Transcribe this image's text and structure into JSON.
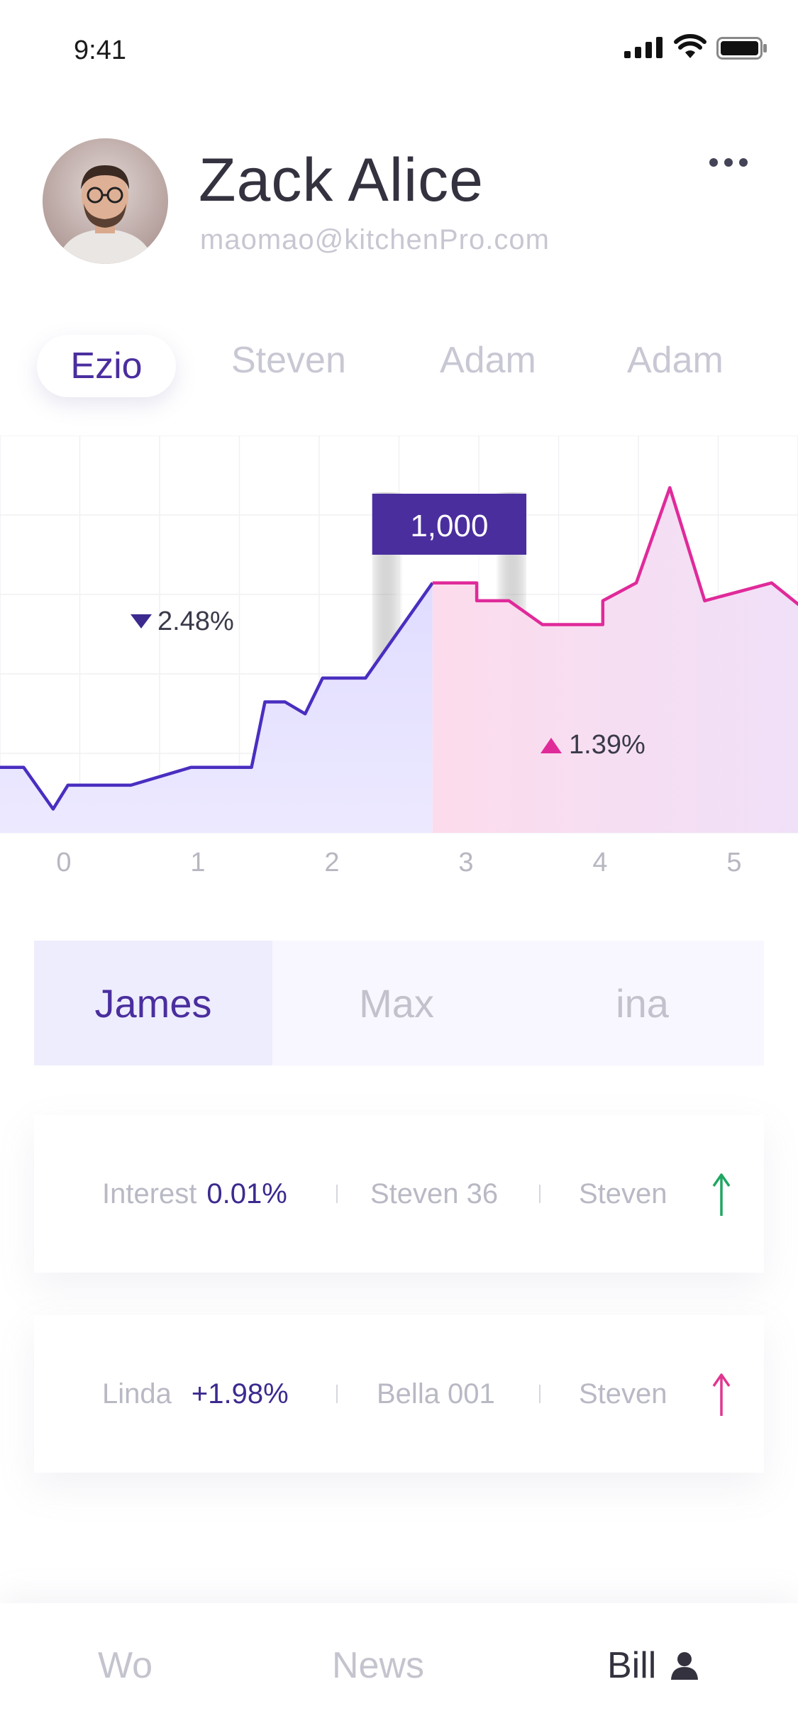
{
  "status_bar": {
    "time": "9:41"
  },
  "profile": {
    "name": "Zack Alice",
    "email": "maomao@kitchenPro.com"
  },
  "top_tabs": [
    "Ezio",
    "Steven",
    "Adam",
    "Adam"
  ],
  "chart_data": {
    "type": "area",
    "x_ticks": [
      "0",
      "1",
      "2",
      "3",
      "4",
      "5"
    ],
    "tooltip": "1,000",
    "annotations": [
      {
        "text": "2.48%",
        "direction": "down"
      },
      {
        "text": "1.39%",
        "direction": "up"
      }
    ],
    "series": [
      {
        "color": "#4a2ec0",
        "points": [
          [
            -0.48,
            11
          ],
          [
            -0.3,
            11
          ],
          [
            -0.08,
            4
          ],
          [
            0.03,
            8
          ],
          [
            0.5,
            8
          ],
          [
            0.95,
            11
          ],
          [
            1.4,
            11
          ],
          [
            1.5,
            22
          ],
          [
            1.65,
            22
          ],
          [
            1.8,
            20
          ],
          [
            1.93,
            26
          ],
          [
            2.25,
            26
          ],
          [
            2.75,
            42
          ]
        ]
      },
      {
        "color": "#e02a9a",
        "points": [
          [
            2.75,
            42
          ],
          [
            3.08,
            42
          ],
          [
            3.08,
            39
          ],
          [
            3.32,
            39
          ],
          [
            3.57,
            35
          ],
          [
            4.02,
            35
          ],
          [
            4.02,
            39
          ],
          [
            4.27,
            42
          ],
          [
            4.52,
            58
          ],
          [
            4.78,
            39
          ],
          [
            5.28,
            42
          ],
          [
            5.5,
            38
          ]
        ]
      }
    ],
    "ylim": [
      0,
      62
    ],
    "grid": true
  },
  "segmented": [
    "James",
    "Max",
    "ina"
  ],
  "rows": [
    {
      "label": "Interest",
      "value": "0.01%",
      "middle": "Steven 36",
      "right": "Steven",
      "arrow_color": "#1fa661"
    },
    {
      "label": "Linda",
      "value": "+1.98%",
      "middle": "Bella 001",
      "right": "Steven",
      "arrow_color": "#e0368f"
    }
  ],
  "bottom_nav": [
    "Wo",
    "News",
    "Bill"
  ],
  "colors": {
    "accent": "#4a2e9e",
    "pink": "#e02a9a",
    "green": "#1fa661"
  }
}
